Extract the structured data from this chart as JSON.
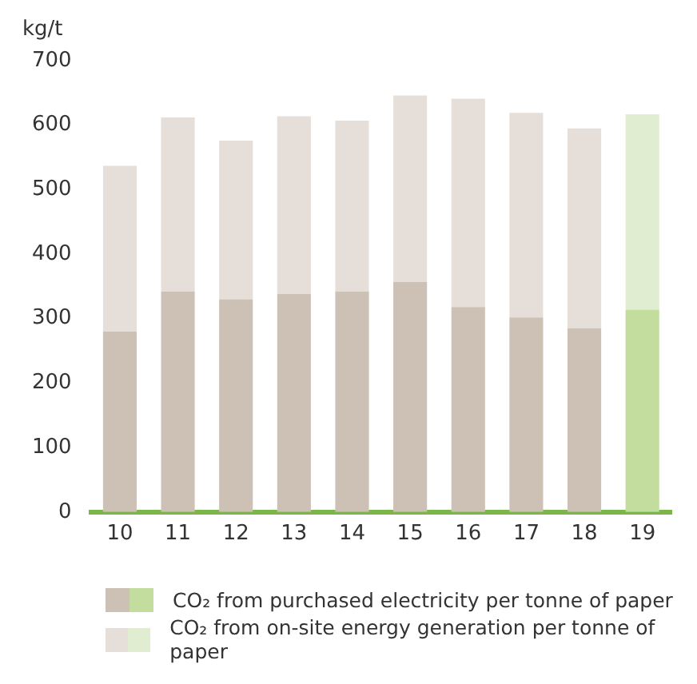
{
  "chart_data": {
    "type": "bar",
    "ylabel": "kg/t",
    "stacked": true,
    "categories": [
      "10",
      "11",
      "12",
      "13",
      "14",
      "15",
      "16",
      "17",
      "18",
      "19"
    ],
    "series": [
      {
        "name": "CO₂ from purchased electricity per tonne of paper",
        "colors": [
          "#cdc1b6",
          "#cdc1b6",
          "#cdc1b6",
          "#cdc1b6",
          "#cdc1b6",
          "#cdc1b6",
          "#cdc1b6",
          "#cdc1b6",
          "#cdc1b6",
          "#c3dd9e"
        ],
        "values": [
          280,
          342,
          330,
          338,
          342,
          357,
          318,
          302,
          285,
          314
        ]
      },
      {
        "name": "CO₂ from on-site energy generation per tonne of paper",
        "colors": [
          "#e6dfd9",
          "#e6dfd9",
          "#e6dfd9",
          "#e6dfd9",
          "#e6dfd9",
          "#e6dfd9",
          "#e6dfd9",
          "#e6dfd9",
          "#e6dfd9",
          "#e1edd0"
        ],
        "values": [
          257,
          270,
          246,
          276,
          265,
          289,
          323,
          317,
          310,
          303
        ]
      }
    ],
    "ylim": [
      0,
      700
    ],
    "yticks": [
      0,
      100,
      200,
      300,
      400,
      500,
      600,
      700
    ],
    "grid": false,
    "legend": "bottom"
  }
}
